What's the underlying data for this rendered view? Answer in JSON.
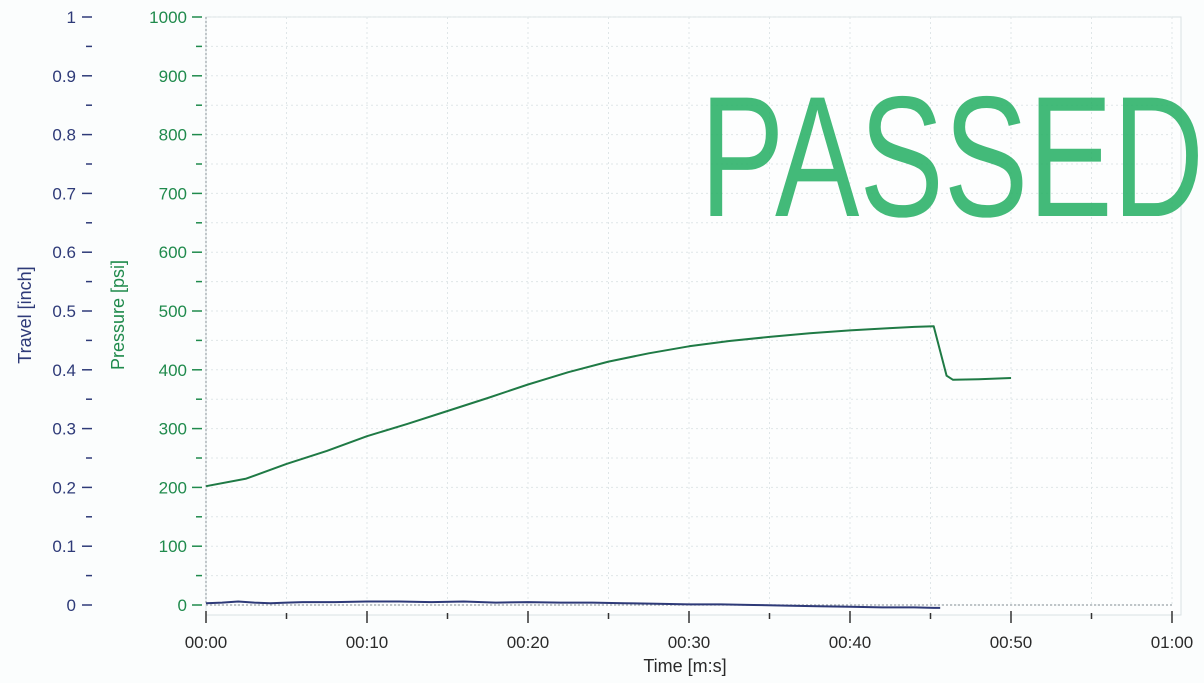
{
  "chart_data": {
    "type": "line",
    "x_axis": {
      "label": "Time [m:s]",
      "unit": "seconds",
      "range": [
        0,
        60
      ],
      "ticks": [
        {
          "value": 0,
          "label": "00:00"
        },
        {
          "value": 10,
          "label": "00:10"
        },
        {
          "value": 20,
          "label": "00:20"
        },
        {
          "value": 30,
          "label": "00:30"
        },
        {
          "value": 40,
          "label": "00:40"
        },
        {
          "value": 50,
          "label": "00:50"
        },
        {
          "value": 60,
          "label": "01:00"
        }
      ]
    },
    "y_left_outer": {
      "label": "Travel [inch]",
      "color": "#2e3a78",
      "range": [
        0,
        1
      ],
      "ticks": [
        {
          "value": 0,
          "label": "0"
        },
        {
          "value": 0.1,
          "label": "0.1"
        },
        {
          "value": 0.2,
          "label": "0.2"
        },
        {
          "value": 0.3,
          "label": "0.3"
        },
        {
          "value": 0.4,
          "label": "0.4"
        },
        {
          "value": 0.5,
          "label": "0.5"
        },
        {
          "value": 0.6,
          "label": "0.6"
        },
        {
          "value": 0.7,
          "label": "0.7"
        },
        {
          "value": 0.8,
          "label": "0.8"
        },
        {
          "value": 0.9,
          "label": "0.9"
        },
        {
          "value": 1,
          "label": "1"
        }
      ]
    },
    "y_left_inner": {
      "label": "Pressure [psi]",
      "color": "#1f8a4c",
      "range": [
        0,
        1000
      ],
      "ticks": [
        {
          "value": 0,
          "label": "0"
        },
        {
          "value": 100,
          "label": "100"
        },
        {
          "value": 200,
          "label": "200"
        },
        {
          "value": 300,
          "label": "300"
        },
        {
          "value": 400,
          "label": "400"
        },
        {
          "value": 500,
          "label": "500"
        },
        {
          "value": 600,
          "label": "600"
        },
        {
          "value": 700,
          "label": "700"
        },
        {
          "value": 800,
          "label": "800"
        },
        {
          "value": 900,
          "label": "900"
        },
        {
          "value": 1000,
          "label": "1000"
        }
      ]
    },
    "series": [
      {
        "axis": "pressure",
        "color": "#1f7a45",
        "points": [
          [
            0,
            202
          ],
          [
            2.5,
            215
          ],
          [
            5,
            240
          ],
          [
            7.5,
            262
          ],
          [
            10,
            287
          ],
          [
            12.5,
            308
          ],
          [
            15,
            330
          ],
          [
            17.5,
            352
          ],
          [
            20,
            375
          ],
          [
            22.5,
            396
          ],
          [
            25,
            414
          ],
          [
            27.5,
            428
          ],
          [
            30,
            440
          ],
          [
            32.5,
            449
          ],
          [
            35,
            456
          ],
          [
            37.5,
            462
          ],
          [
            40,
            467
          ],
          [
            42.5,
            471
          ],
          [
            44,
            473
          ],
          [
            45.2,
            474
          ],
          [
            46,
            390
          ],
          [
            46.4,
            383
          ],
          [
            48,
            384
          ],
          [
            50,
            386
          ]
        ]
      },
      {
        "axis": "travel",
        "color": "#2e3a78",
        "points": [
          [
            0,
            0.003
          ],
          [
            1,
            0.004
          ],
          [
            2,
            0.006
          ],
          [
            3,
            0.004
          ],
          [
            4,
            0.003
          ],
          [
            5,
            0.004
          ],
          [
            6,
            0.005
          ],
          [
            8,
            0.005
          ],
          [
            10,
            0.006
          ],
          [
            12,
            0.006
          ],
          [
            14,
            0.005
          ],
          [
            16,
            0.006
          ],
          [
            18,
            0.004
          ],
          [
            20,
            0.005
          ],
          [
            22,
            0.004
          ],
          [
            24,
            0.004
          ],
          [
            26,
            0.003
          ],
          [
            28,
            0.002
          ],
          [
            30,
            0.001
          ],
          [
            32,
            0.001
          ],
          [
            34,
            0.0
          ],
          [
            36,
            -0.001
          ],
          [
            38,
            -0.002
          ],
          [
            40,
            -0.003
          ],
          [
            42,
            -0.004
          ],
          [
            44,
            -0.004
          ],
          [
            45.2,
            -0.005
          ],
          [
            45.6,
            -0.005
          ]
        ]
      }
    ],
    "grid": true
  },
  "stamp": {
    "text": "PASSED",
    "color": "#2fb36b"
  }
}
